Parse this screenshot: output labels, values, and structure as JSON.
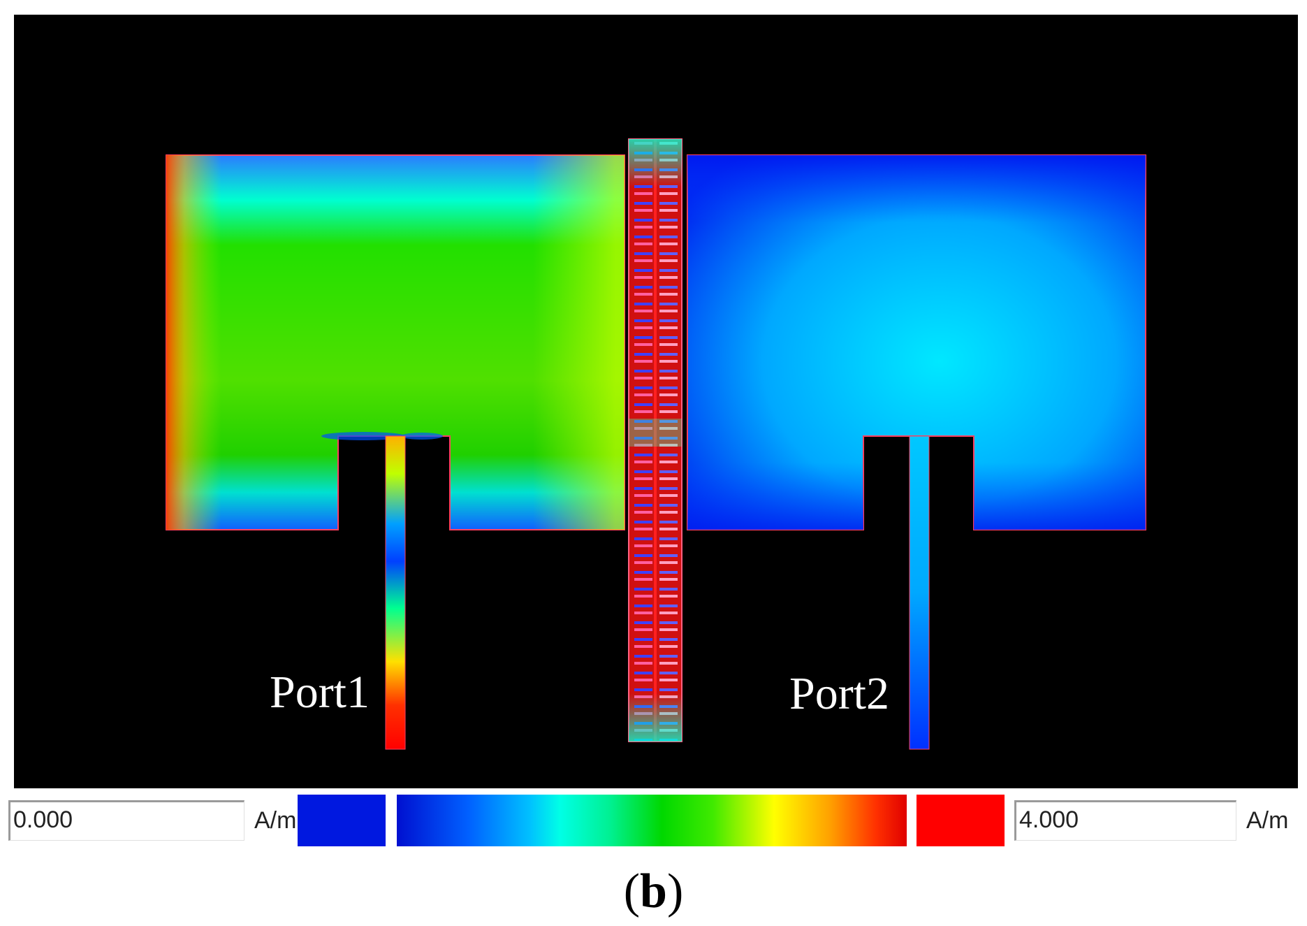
{
  "viewport": {
    "ports": [
      "Port1",
      "Port2"
    ]
  },
  "colorbar": {
    "min_value": "0.000",
    "max_value": "4.000",
    "unit": "A/m",
    "low_color": "#0018e0",
    "high_color": "#ff0000"
  },
  "figure": {
    "label_open": "(",
    "label_letter": "b",
    "label_close": ")"
  }
}
